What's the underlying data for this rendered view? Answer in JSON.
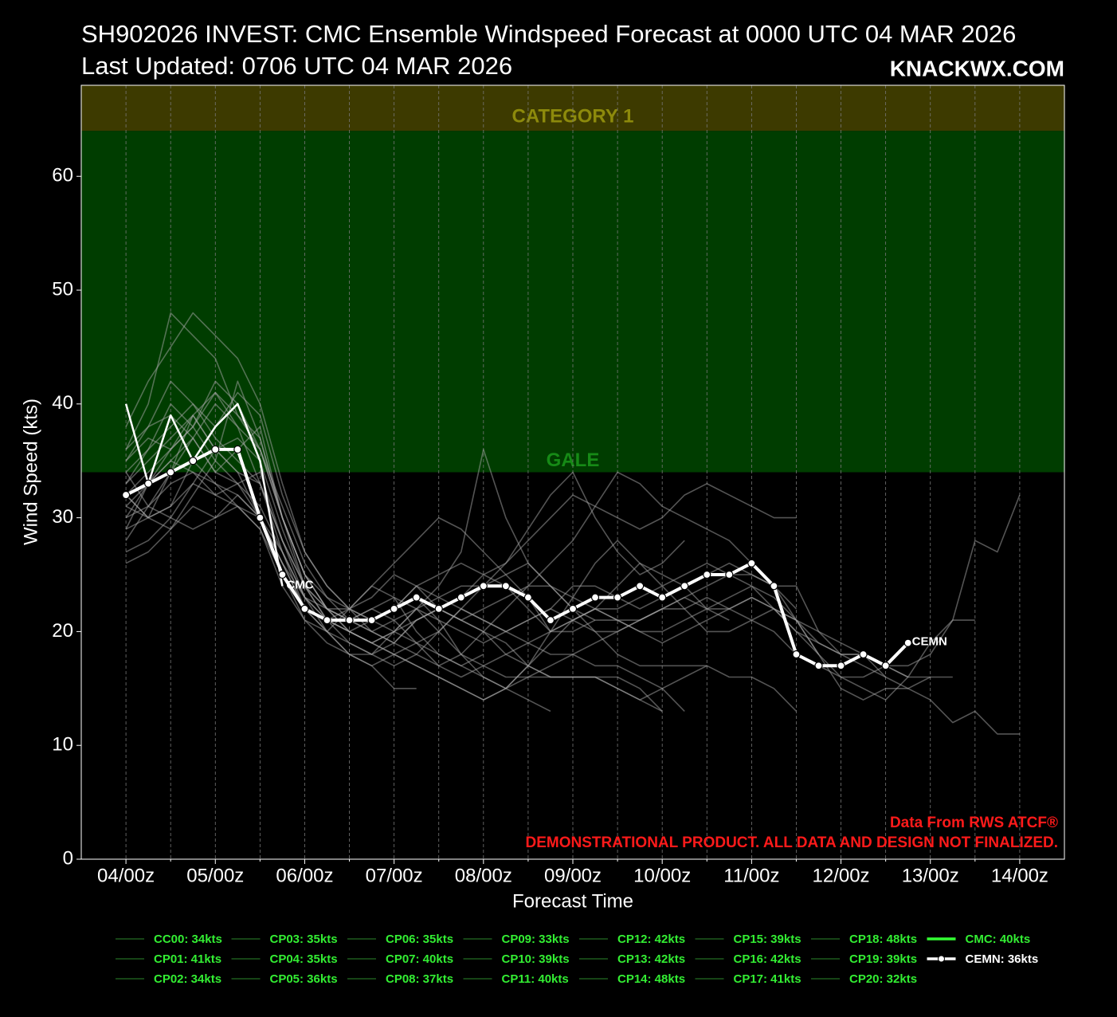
{
  "chart_data": {
    "type": "line",
    "title": "SH902026 INVEST: CMC Ensemble Windspeed Forecast at 0000 UTC 04 MAR 2026",
    "subtitle": "Last Updated: 0706 UTC 04 MAR 2026",
    "brand": "KNACKWX.COM",
    "x_label": "Forecast Time",
    "y_label": "Wind Speed (kts)",
    "credit": "Data From RWS ATCF®",
    "disclaimer": "DEMONSTRATIONAL PRODUCT. ALL DATA AND DESIGN NOT FINALIZED.",
    "xlim": [
      -12,
      252
    ],
    "ylim": [
      0,
      68
    ],
    "xticks": [
      {
        "value": 0,
        "label": "04/00z"
      },
      {
        "value": 24,
        "label": "05/00z"
      },
      {
        "value": 48,
        "label": "06/00z"
      },
      {
        "value": 72,
        "label": "07/00z"
      },
      {
        "value": 96,
        "label": "08/00z"
      },
      {
        "value": 120,
        "label": "09/00z"
      },
      {
        "value": 144,
        "label": "10/00z"
      },
      {
        "value": 168,
        "label": "11/00z"
      },
      {
        "value": 192,
        "label": "12/00z"
      },
      {
        "value": 216,
        "label": "13/00z"
      },
      {
        "value": 240,
        "label": "14/00z"
      }
    ],
    "xminorticks": [
      12,
      36,
      60,
      84,
      108,
      132,
      156,
      180,
      204,
      228
    ],
    "yticks": [
      0,
      10,
      20,
      30,
      40,
      50,
      60
    ],
    "grid": true,
    "bands": [
      {
        "label": "GALE",
        "from": 34,
        "to": 64,
        "color": "#003d00",
        "label_color": "#168a16"
      },
      {
        "label": "CATEGORY 1",
        "from": 64,
        "to": 83,
        "color": "#3d3a00",
        "label_color": "#8d8a0c"
      }
    ],
    "ensemble_color": "#a8a8a8",
    "ensemble_legend_color": "#1d5a1d",
    "legend_text_color": "#33ee33",
    "x": [
      0,
      6,
      12,
      18,
      24,
      30,
      36,
      42,
      48,
      54,
      60,
      66,
      72,
      78,
      84,
      90,
      96,
      102,
      108,
      114,
      120,
      126,
      132,
      138,
      144,
      150,
      156,
      162,
      168,
      174,
      180,
      186,
      192,
      198,
      204,
      210,
      216,
      222,
      228,
      234,
      240
    ],
    "series": [
      {
        "name": "CC00: 34kts",
        "kind": "member",
        "values": [
          34,
          31,
          30,
          29,
          30,
          31,
          29,
          25,
          22,
          20,
          19,
          18,
          20,
          22,
          21,
          20,
          19,
          20,
          21,
          22,
          21,
          20,
          20,
          21,
          22,
          22,
          23,
          22,
          21,
          20,
          18,
          17,
          16,
          16,
          17,
          16,
          null,
          null,
          null,
          null,
          null
        ]
      },
      {
        "name": "CP01: 41kts",
        "kind": "member",
        "values": [
          35,
          37,
          36,
          39,
          41,
          38,
          33,
          27,
          22,
          20,
          18,
          17,
          18,
          19,
          20,
          22,
          21,
          20,
          19,
          18,
          18,
          17,
          17,
          16,
          15,
          13,
          null,
          null,
          null,
          null,
          null,
          null,
          null,
          null,
          null,
          null,
          null,
          null,
          null,
          null,
          null
        ]
      },
      {
        "name": "CP02: 34kts",
        "kind": "member",
        "values": [
          30,
          31,
          33,
          34,
          33,
          32,
          30,
          26,
          23,
          21,
          22,
          24,
          23,
          20,
          18,
          17,
          18,
          null,
          null,
          null,
          null,
          null,
          null,
          null,
          null,
          null,
          null,
          null,
          null,
          null,
          null,
          null,
          null,
          null,
          null,
          null,
          null,
          null,
          null,
          null,
          null
        ]
      },
      {
        "name": "CP03: 35kts",
        "kind": "member",
        "values": [
          31,
          30,
          29,
          32,
          35,
          33,
          30,
          25,
          21,
          19,
          18,
          17,
          15,
          15,
          null,
          null,
          null,
          null,
          null,
          null,
          null,
          null,
          null,
          null,
          null,
          null,
          null,
          null,
          null,
          null,
          null,
          null,
          null,
          null,
          null,
          null,
          null,
          null,
          null,
          null,
          null
        ]
      },
      {
        "name": "CP04: 35kts",
        "kind": "member",
        "values": [
          29,
          33,
          35,
          34,
          32,
          33,
          31,
          27,
          23,
          22,
          22,
          23,
          25,
          24,
          22,
          21,
          22,
          23,
          24,
          24,
          23,
          22,
          22,
          23,
          24,
          25,
          26,
          25,
          24,
          22,
          20,
          19,
          18,
          18,
          16,
          15,
          14,
          12,
          13,
          11,
          11
        ]
      },
      {
        "name": "CP05: 36kts",
        "kind": "member",
        "values": [
          27,
          28,
          30,
          33,
          36,
          34,
          30,
          26,
          22,
          21,
          20,
          21,
          22,
          24,
          25,
          26,
          25,
          24,
          22,
          20,
          21,
          22,
          24,
          26,
          25,
          24,
          22,
          21,
          null,
          null,
          null,
          null,
          null,
          null,
          null,
          null,
          null,
          null,
          null,
          null,
          null
        ]
      },
      {
        "name": "CP06: 35kts",
        "kind": "member",
        "values": [
          32,
          30,
          31,
          35,
          33,
          31,
          29,
          24,
          21,
          20,
          22,
          24,
          26,
          28,
          30,
          29,
          27,
          25,
          23,
          20,
          20,
          21,
          null,
          null,
          null,
          null,
          null,
          null,
          null,
          null,
          null,
          null,
          null,
          null,
          null,
          null,
          null,
          null,
          null,
          null,
          null
        ]
      },
      {
        "name": "CP07: 40kts",
        "kind": "member",
        "values": [
          33,
          36,
          38,
          40,
          37,
          35,
          33,
          28,
          24,
          22,
          20,
          19,
          20,
          22,
          24,
          27,
          36,
          30,
          26,
          24,
          22,
          20,
          18,
          17,
          17,
          17,
          17,
          16,
          16,
          15,
          13,
          null,
          null,
          null,
          null,
          null,
          null,
          null,
          null,
          null,
          null
        ]
      },
      {
        "name": "CP08: 37kts",
        "kind": "member",
        "values": [
          31,
          33,
          35,
          37,
          34,
          33,
          34,
          28,
          23,
          20,
          18,
          18,
          19,
          21,
          22,
          23,
          25,
          26,
          29,
          32,
          34,
          30,
          27,
          25,
          26,
          28,
          null,
          null,
          null,
          null,
          null,
          null,
          null,
          null,
          null,
          null,
          null,
          null,
          null,
          null,
          null
        ]
      },
      {
        "name": "CP09: 33kts",
        "kind": "member",
        "values": [
          29,
          30,
          31,
          33,
          32,
          31,
          30,
          26,
          22,
          21,
          21,
          22,
          21,
          19,
          17,
          16,
          17,
          18,
          19,
          20,
          21,
          22,
          21,
          20,
          20,
          21,
          22,
          23,
          24,
          23,
          21,
          19,
          18,
          17,
          16,
          null,
          null,
          null,
          null,
          null,
          null
        ]
      },
      {
        "name": "CP10: 39kts",
        "kind": "member",
        "values": [
          28,
          31,
          34,
          39,
          36,
          37,
          35,
          29,
          24,
          21,
          20,
          19,
          18,
          17,
          16,
          15,
          14,
          15,
          16,
          17,
          18,
          19,
          20,
          21,
          22,
          23,
          24,
          25,
          25,
          24,
          21,
          18,
          15,
          14,
          15,
          15,
          16,
          16,
          null,
          null,
          null
        ]
      },
      {
        "name": "CP11: 40kts",
        "kind": "member",
        "values": [
          32,
          30,
          34,
          37,
          40,
          38,
          36,
          30,
          25,
          22,
          21,
          21,
          22,
          23,
          21,
          18,
          16,
          15,
          17,
          20,
          23,
          26,
          28,
          26,
          24,
          22,
          20,
          20,
          21,
          22,
          21,
          18,
          null,
          null,
          null,
          null,
          null,
          null,
          null,
          null,
          null
        ]
      },
      {
        "name": "CP12: 42kts",
        "kind": "member",
        "values": [
          34,
          36,
          40,
          38,
          35,
          42,
          37,
          30,
          25,
          22,
          20,
          19,
          20,
          21,
          22,
          21,
          20,
          18,
          17,
          16,
          16,
          16,
          15,
          14,
          15,
          16,
          17,
          null,
          null,
          null,
          null,
          null,
          null,
          null,
          null,
          null,
          null,
          null,
          null,
          null,
          null
        ]
      },
      {
        "name": "CP13: 42kts",
        "kind": "member",
        "values": [
          35,
          38,
          42,
          40,
          38,
          41,
          39,
          32,
          27,
          24,
          22,
          20,
          19,
          18,
          17,
          18,
          20,
          22,
          24,
          26,
          28,
          31,
          34,
          33,
          31,
          30,
          29,
          28,
          26,
          24,
          22,
          null,
          null,
          null,
          null,
          null,
          null,
          null,
          null,
          null,
          null
        ]
      },
      {
        "name": "CP14: 48kts",
        "kind": "member",
        "values": [
          36,
          40,
          48,
          46,
          44,
          39,
          36,
          30,
          25,
          23,
          21,
          20,
          19,
          21,
          22,
          21,
          20,
          19,
          17,
          16,
          16,
          16,
          16,
          15,
          13,
          null,
          null,
          null,
          null,
          null,
          null,
          null,
          null,
          null,
          null,
          null,
          null,
          null,
          null,
          null,
          null
        ]
      },
      {
        "name": "CP15: 39kts",
        "kind": "member",
        "values": [
          33,
          35,
          37,
          39,
          36,
          34,
          33,
          28,
          24,
          22,
          21,
          20,
          21,
          22,
          23,
          24,
          24,
          25,
          26,
          24,
          22,
          21,
          21,
          21,
          22,
          23,
          22,
          22,
          23,
          22,
          21,
          20,
          19,
          18,
          17,
          16,
          16,
          null,
          null,
          null,
          null
        ]
      },
      {
        "name": "CP16: 42kts",
        "kind": "member",
        "values": [
          30,
          33,
          36,
          38,
          42,
          40,
          36,
          31,
          26,
          23,
          22,
          21,
          22,
          24,
          23,
          22,
          21,
          20,
          21,
          22,
          24,
          24,
          23,
          22,
          23,
          24,
          25,
          26,
          25,
          24,
          24,
          20,
          18,
          18,
          17,
          17,
          18,
          21,
          21,
          null,
          null
        ]
      },
      {
        "name": "CP17: 41kts",
        "kind": "member",
        "values": [
          32,
          34,
          36,
          38,
          41,
          39,
          37,
          30,
          25,
          22,
          21,
          22,
          23,
          22,
          20,
          18,
          17,
          16,
          16,
          16,
          16,
          16,
          15,
          14,
          13,
          null,
          null,
          null,
          null,
          null,
          null,
          null,
          null,
          null,
          null,
          null,
          null,
          null,
          null,
          null,
          null
        ]
      },
      {
        "name": "CP18: 48kts",
        "kind": "member",
        "values": [
          38,
          42,
          45,
          48,
          46,
          44,
          40,
          33,
          27,
          24,
          22,
          21,
          20,
          19,
          18,
          17,
          16,
          15,
          14,
          13,
          null,
          null,
          null,
          null,
          null,
          null,
          null,
          null,
          null,
          null,
          null,
          null,
          null,
          null,
          null,
          null,
          null,
          null,
          null,
          null,
          null
        ]
      },
      {
        "name": "CP19: 39kts",
        "kind": "member",
        "values": [
          36,
          38,
          39,
          37,
          34,
          36,
          38,
          30,
          24,
          21,
          19,
          18,
          17,
          18,
          20,
          22,
          24,
          26,
          28,
          30,
          32,
          31,
          30,
          29,
          30,
          32,
          33,
          32,
          31,
          30,
          30,
          null,
          null,
          null,
          null,
          null,
          null,
          null,
          null,
          null,
          null
        ]
      },
      {
        "name": "CP20: 32kts",
        "kind": "member",
        "values": [
          26,
          27,
          29,
          31,
          30,
          32,
          30,
          27,
          23,
          21,
          20,
          19,
          18,
          17,
          16,
          15,
          14,
          15,
          17,
          19,
          21,
          22,
          21,
          20,
          19,
          20,
          21,
          22,
          23,
          22,
          20,
          18,
          16,
          15,
          14,
          16,
          19,
          21,
          28,
          27,
          32
        ]
      },
      {
        "name": "CMC: 40kts",
        "label": "CMC",
        "kind": "deterministic",
        "color": "#ffffff",
        "legend_color": "#33ff33",
        "values": [
          40,
          33,
          39,
          35,
          38,
          40,
          35,
          24,
          null,
          null,
          null,
          null,
          null,
          null,
          null,
          null,
          null,
          null,
          null,
          null,
          null,
          null,
          null,
          null,
          null,
          null,
          null,
          null,
          null,
          null,
          null,
          null,
          null,
          null,
          null,
          null,
          null,
          null,
          null,
          null,
          null
        ]
      },
      {
        "name": "CEMN: 36kts",
        "label": "CEMN",
        "kind": "mean",
        "color": "#ffffff",
        "legend_color": "#ffffff",
        "text_color": "#ffffff",
        "values": [
          32,
          33,
          34,
          35,
          36,
          36,
          30,
          25,
          22,
          21,
          21,
          21,
          22,
          23,
          22,
          23,
          24,
          24,
          23,
          21,
          22,
          23,
          23,
          24,
          23,
          24,
          25,
          25,
          26,
          24,
          18,
          17,
          17,
          18,
          17,
          19,
          null,
          null,
          null,
          null,
          null
        ]
      }
    ]
  }
}
